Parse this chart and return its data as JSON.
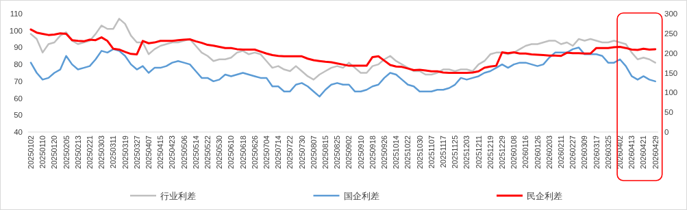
{
  "chart_data": {
    "type": "line",
    "categories": [
      "20250102",
      null,
      "20250110",
      null,
      "20250120",
      null,
      "20250205",
      null,
      "20250213",
      null,
      "20250221",
      null,
      "20250303",
      null,
      "20250311",
      null,
      "20250319",
      null,
      "20250327",
      null,
      "20250407",
      null,
      "20250415",
      null,
      "20250423",
      null,
      "20250506",
      null,
      "20250514",
      null,
      "20250522",
      null,
      "20250530",
      null,
      "20250610",
      null,
      "20250618",
      null,
      "20250626",
      null,
      "20250704",
      null,
      "20250714",
      null,
      "20250722",
      null,
      "20250730",
      null,
      "20250807",
      null,
      "20250815",
      null,
      "20250825",
      null,
      "20250902",
      null,
      "20250910",
      null,
      "20250918",
      null,
      "20250926",
      null,
      "20251014",
      null,
      "20251022",
      null,
      "20251030",
      null,
      "20251107",
      null,
      "20251117",
      null,
      "20251125",
      null,
      "20251203",
      null,
      "20251211",
      null,
      "20251219",
      null,
      "20251229",
      null,
      "20260108",
      null,
      "20260116",
      null,
      "20260126",
      null,
      "20260203",
      null,
      "20260211",
      null,
      "20260227",
      null,
      "20260309",
      null,
      "20260317",
      null,
      "20260325",
      null,
      "20260402",
      null,
      "20260413",
      null,
      "20260421",
      null,
      "20260429"
    ],
    "series": [
      {
        "name": "行业利差",
        "color": "#bfbfbf",
        "values": [
          98,
          95,
          87,
          92,
          93,
          97,
          99,
          94,
          92,
          93,
          94,
          98,
          103,
          101,
          101,
          107,
          104,
          97,
          93,
          93,
          86,
          89,
          91,
          92,
          93,
          93,
          94,
          95,
          91,
          87,
          85,
          82,
          83,
          83,
          84,
          87,
          88,
          86,
          87,
          86,
          82,
          78,
          79,
          77,
          76,
          79,
          76,
          73,
          71,
          74,
          76,
          78,
          79,
          78,
          81,
          78,
          75,
          75,
          79,
          80,
          83,
          85,
          82,
          80,
          78,
          76,
          76,
          74,
          74,
          75,
          77,
          77,
          76,
          77,
          77,
          76,
          80,
          82,
          86,
          87,
          87,
          86,
          87,
          89,
          91,
          92,
          92,
          93,
          94,
          94,
          92,
          93,
          91,
          95,
          94,
          95,
          94,
          93,
          93,
          94,
          93,
          92,
          87,
          83,
          84,
          83,
          81
        ]
      },
      {
        "name": "国企利差",
        "color": "#5b9bd5",
        "values": [
          81,
          75,
          71,
          72,
          75,
          77,
          85,
          80,
          77,
          78,
          79,
          83,
          88,
          87,
          89,
          88,
          85,
          80,
          77,
          79,
          75,
          78,
          78,
          79,
          81,
          82,
          81,
          80,
          76,
          72,
          72,
          70,
          71,
          74,
          73,
          74,
          75,
          74,
          73,
          72,
          72,
          67,
          67,
          64,
          64,
          68,
          69,
          67,
          64,
          61,
          65,
          68,
          69,
          68,
          68,
          64,
          64,
          65,
          67,
          68,
          72,
          75,
          74,
          71,
          68,
          67,
          64,
          64,
          64,
          65,
          65,
          66,
          68,
          72,
          71,
          72,
          73,
          75,
          76,
          78,
          80,
          78,
          80,
          81,
          81,
          80,
          79,
          80,
          84,
          87,
          87,
          87,
          89,
          90,
          86,
          86,
          86,
          85,
          81,
          81,
          83,
          79,
          73,
          71,
          73,
          71,
          70
        ]
      },
      {
        "name": "民企利差",
        "color": "#ff0000",
        "axis": "y2",
        "values": [
          260,
          252,
          249,
          246,
          247,
          250,
          249,
          233,
          231,
          230,
          234,
          233,
          240,
          231,
          211,
          209,
          203,
          198,
          197,
          231,
          225,
          227,
          231,
          231,
          231,
          233,
          234,
          235,
          230,
          226,
          221,
          219,
          216,
          213,
          213,
          210,
          209,
          209,
          209,
          204,
          199,
          195,
          193,
          192,
          192,
          192,
          192,
          186,
          182,
          180,
          178,
          177,
          174,
          171,
          168,
          168,
          168,
          168,
          190,
          192,
          181,
          170,
          166,
          165,
          161,
          157,
          158,
          156,
          154,
          154,
          151,
          150,
          150,
          150,
          150,
          151,
          154,
          163,
          166,
          168,
          202,
          200,
          202,
          199,
          199,
          197,
          196,
          195,
          194,
          194,
          193,
          201,
          200,
          200,
          199,
          199,
          213,
          213,
          213,
          215,
          216,
          213,
          209,
          208,
          211,
          209,
          210
        ]
      }
    ],
    "ylim": [
      40,
      110
    ],
    "yticks": [
      40,
      50,
      60,
      70,
      80,
      90,
      100,
      110
    ],
    "y2lim": [
      0,
      300
    ],
    "y2ticks": [
      0,
      50,
      100,
      150,
      200,
      250,
      300
    ],
    "legend": "bottom"
  }
}
